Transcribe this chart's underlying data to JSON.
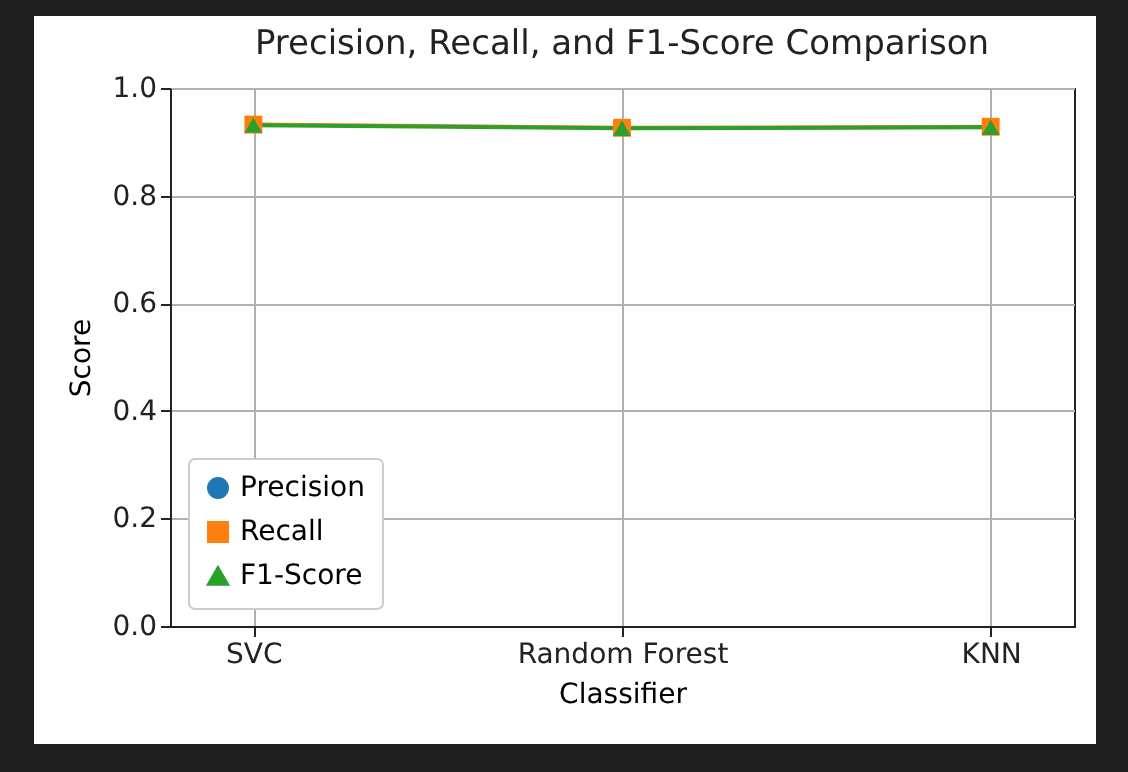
{
  "chart_data": {
    "type": "line",
    "title": "Precision, Recall, and F1-Score Comparison",
    "xlabel": "Classifier",
    "ylabel": "Score",
    "categories": [
      "SVC",
      "Random Forest",
      "KNN"
    ],
    "series": [
      {
        "name": "Precision",
        "color": "#1f77b4",
        "marker": "circle",
        "values": [
          null,
          null,
          null
        ]
      },
      {
        "name": "Recall",
        "color": "#ff7f0e",
        "marker": "square",
        "values": [
          0.932,
          0.926,
          0.928
        ]
      },
      {
        "name": "F1-Score",
        "color": "#2ca02c",
        "marker": "triangle",
        "values": [
          0.931,
          0.925,
          0.927
        ]
      }
    ],
    "ylim": [
      0,
      1
    ],
    "yticks": [
      {
        "value": 0,
        "label": "0.0"
      },
      {
        "value": 0.2,
        "label": "0.2"
      },
      {
        "value": 0.4,
        "label": "0.4"
      },
      {
        "value": 0.6,
        "label": "0.6"
      },
      {
        "value": 0.8,
        "label": "0.8"
      },
      {
        "value": 1,
        "label": "1.0"
      }
    ],
    "grid": true,
    "legend": "bottom left"
  }
}
